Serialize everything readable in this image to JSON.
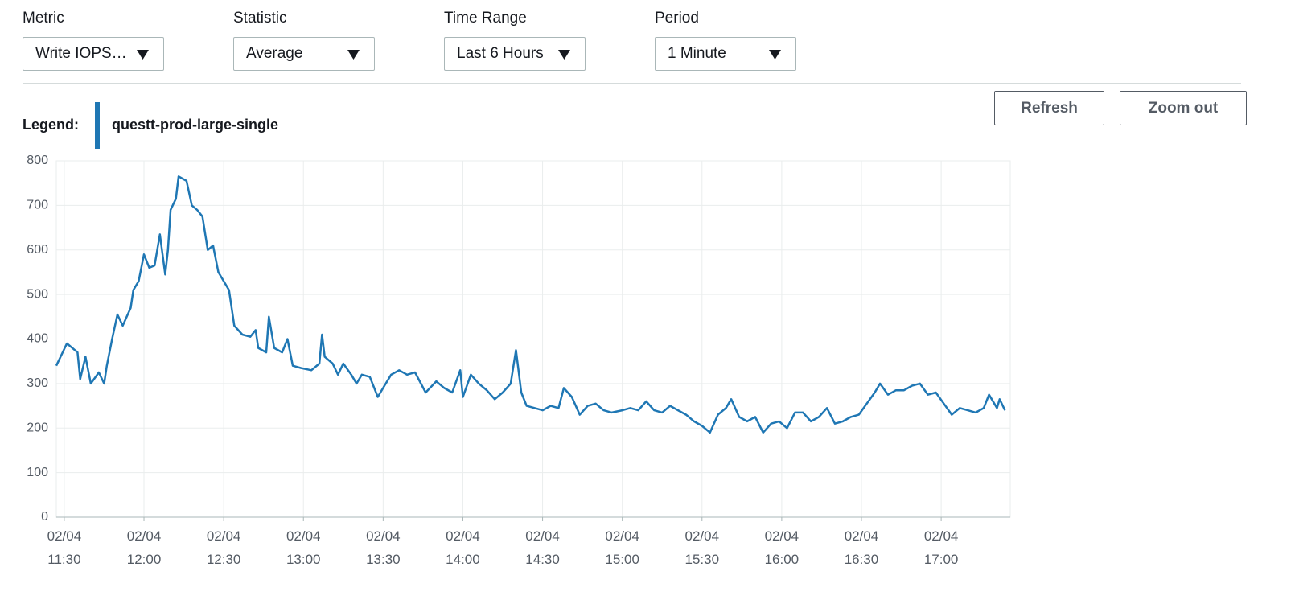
{
  "controls": [
    {
      "label": "Metric",
      "value": "Write IOPS…"
    },
    {
      "label": "Statistic",
      "value": "Average"
    },
    {
      "label": "Time Range",
      "value": "Last 6 Hours"
    },
    {
      "label": "Period",
      "value": "1 Minute"
    }
  ],
  "buttons": [
    "Refresh",
    "Zoom out"
  ],
  "legend": {
    "label": "Legend:"
  },
  "chart_data": {
    "type": "line",
    "grid": true,
    "x": [
      "02/04 11:27",
      "02/04 11:31",
      "02/04 11:35",
      "02/04 11:36",
      "02/04 11:38",
      "02/04 11:40",
      "02/04 11:43",
      "02/04 11:45",
      "02/04 11:46",
      "02/04 11:48",
      "02/04 11:50",
      "02/04 11:52",
      "02/04 11:55",
      "02/04 11:56",
      "02/04 11:58",
      "02/04 12:00",
      "02/04 12:02",
      "02/04 12:04",
      "02/04 12:06",
      "02/04 12:08",
      "02/04 12:09",
      "02/04 12:10",
      "02/04 12:12",
      "02/04 12:13",
      "02/04 12:16",
      "02/04 12:18",
      "02/04 12:20",
      "02/04 12:22",
      "02/04 12:24",
      "02/04 12:26",
      "02/04 12:28",
      "02/04 12:30",
      "02/04 12:32",
      "02/04 12:34",
      "02/04 12:37",
      "02/04 12:40",
      "02/04 12:42",
      "02/04 12:43",
      "02/04 12:46",
      "02/04 12:47",
      "02/04 12:49",
      "02/04 12:52",
      "02/04 12:54",
      "02/04 12:56",
      "02/04 12:59",
      "02/04 13:03",
      "02/04 13:06",
      "02/04 13:07",
      "02/04 13:08",
      "02/04 13:11",
      "02/04 13:13",
      "02/04 13:15",
      "02/04 13:18",
      "02/04 13:20",
      "02/04 13:22",
      "02/04 13:25",
      "02/04 13:28",
      "02/04 13:30",
      "02/04 13:33",
      "02/04 13:36",
      "02/04 13:39",
      "02/04 13:42",
      "02/04 13:46",
      "02/04 13:50",
      "02/04 13:53",
      "02/04 13:56",
      "02/04 13:59",
      "02/04 14:00",
      "02/04 14:03",
      "02/04 14:06",
      "02/04 14:09",
      "02/04 14:12",
      "02/04 14:15",
      "02/04 14:18",
      "02/04 14:20",
      "02/04 14:22",
      "02/04 14:24",
      "02/04 14:27",
      "02/04 14:30",
      "02/04 14:33",
      "02/04 14:36",
      "02/04 14:38",
      "02/04 14:41",
      "02/04 14:44",
      "02/04 14:47",
      "02/04 14:50",
      "02/04 14:53",
      "02/04 14:56",
      "02/04 15:00",
      "02/04 15:03",
      "02/04 15:06",
      "02/04 15:09",
      "02/04 15:12",
      "02/04 15:15",
      "02/04 15:18",
      "02/04 15:21",
      "02/04 15:24",
      "02/04 15:27",
      "02/04 15:30",
      "02/04 15:33",
      "02/04 15:36",
      "02/04 15:39",
      "02/04 15:41",
      "02/04 15:44",
      "02/04 15:47",
      "02/04 15:50",
      "02/04 15:53",
      "02/04 15:56",
      "02/04 15:59",
      "02/04 16:02",
      "02/04 16:05",
      "02/04 16:08",
      "02/04 16:11",
      "02/04 16:14",
      "02/04 16:17",
      "02/04 16:20",
      "02/04 16:23",
      "02/04 16:26",
      "02/04 16:29",
      "02/04 16:32",
      "02/04 16:35",
      "02/04 16:37",
      "02/04 16:40",
      "02/04 16:43",
      "02/04 16:46",
      "02/04 16:49",
      "02/04 16:52",
      "02/04 16:55",
      "02/04 16:58",
      "02/04 17:01",
      "02/04 17:04",
      "02/04 17:07",
      "02/04 17:10",
      "02/04 17:13",
      "02/04 17:16",
      "02/04 17:18",
      "02/04 17:21",
      "02/04 17:22",
      "02/04 17:24"
    ],
    "series": [
      {
        "name": "questt-prod-large-single",
        "color": "#1f77b4",
        "values": [
          340,
          390,
          370,
          310,
          360,
          300,
          325,
          300,
          340,
          400,
          455,
          430,
          470,
          510,
          530,
          590,
          560,
          565,
          635,
          545,
          600,
          690,
          715,
          765,
          755,
          700,
          690,
          675,
          600,
          610,
          550,
          530,
          510,
          430,
          410,
          405,
          420,
          380,
          370,
          450,
          380,
          370,
          400,
          340,
          335,
          330,
          345,
          410,
          360,
          345,
          320,
          345,
          320,
          300,
          320,
          315,
          270,
          290,
          320,
          330,
          320,
          325,
          280,
          305,
          290,
          280,
          330,
          270,
          320,
          300,
          285,
          265,
          280,
          300,
          375,
          280,
          250,
          245,
          240,
          250,
          245,
          290,
          270,
          230,
          250,
          255,
          240,
          235,
          240,
          245,
          240,
          260,
          240,
          235,
          250,
          240,
          230,
          215,
          205,
          190,
          230,
          245,
          265,
          225,
          215,
          225,
          190,
          210,
          215,
          200,
          235,
          235,
          215,
          225,
          245,
          210,
          215,
          225,
          230,
          255,
          280,
          300,
          275,
          285,
          285,
          295,
          300,
          275,
          280,
          255,
          230,
          245,
          240,
          235,
          245,
          275,
          245,
          265,
          240
        ]
      }
    ],
    "xlim": [
      "02/04 11:27",
      "02/04 17:26"
    ],
    "xticks": [
      "02/04 11:30",
      "02/04 12:00",
      "02/04 12:30",
      "02/04 13:00",
      "02/04 13:30",
      "02/04 14:00",
      "02/04 14:30",
      "02/04 15:00",
      "02/04 15:30",
      "02/04 16:00",
      "02/04 16:30",
      "02/04 17:00"
    ],
    "ylim": [
      0,
      800
    ],
    "yticks": [
      0,
      100,
      200,
      300,
      400,
      500,
      600,
      700,
      800
    ]
  }
}
